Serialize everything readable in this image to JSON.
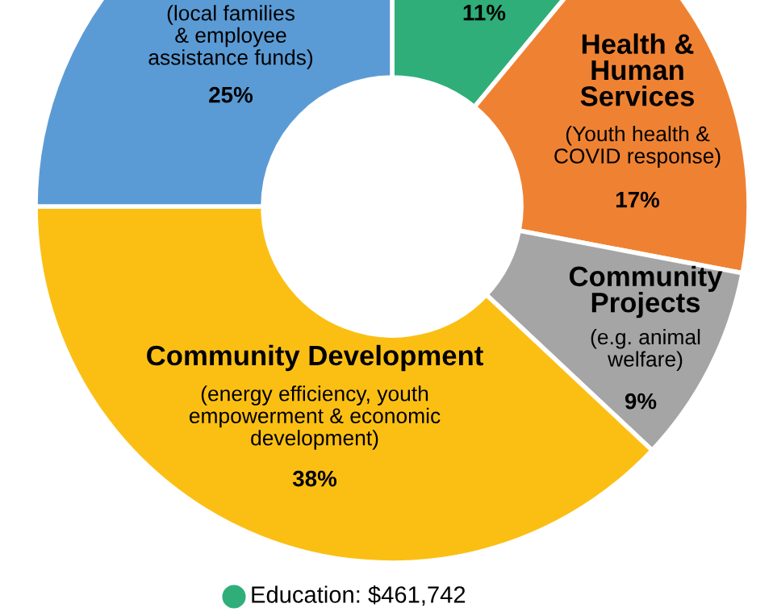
{
  "chart_data": {
    "type": "donut",
    "categories": [
      null,
      "Health &\nHuman\nServices",
      "Community\nProjects",
      "Community Development",
      null
    ],
    "values": [
      11,
      17,
      9,
      38,
      25
    ],
    "value_labels": [
      "11%",
      "17%",
      "9%",
      "38%",
      "25%"
    ],
    "colors": [
      "#2fae7a",
      "#ef8232",
      "#a5a5a5",
      "#fbbf14",
      "#5b9bd5"
    ],
    "annotations": [
      "(Youth health &\nCOVID response)",
      "(e.g. animal\nwelfare)",
      "(energy efficiency, youth\nempowerment & economic\ndevelopment)",
      "(local families\n& employee\nassistance funds)",
      "Education: $461,742"
    ]
  }
}
